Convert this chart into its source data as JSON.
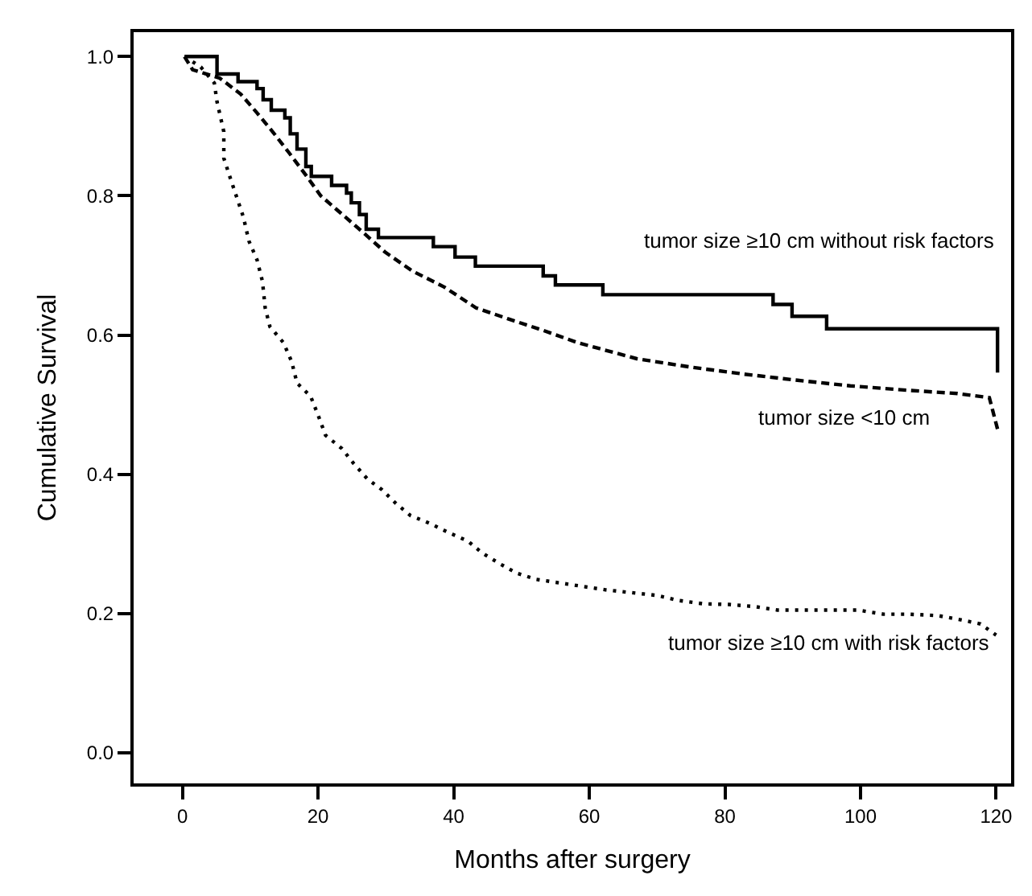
{
  "chart_data": {
    "type": "line",
    "xlabel": "Months after surgery",
    "ylabel": "Cumulative Survival",
    "xlim": [
      -7.2,
      122.2
    ],
    "xticks": [
      0,
      20,
      40,
      60,
      80,
      100,
      120
    ],
    "ylim": [
      -0.044,
      1.035
    ],
    "yticks": [
      {
        "value": 0,
        "label": "0.0"
      },
      {
        "value": 0.2,
        "label": "0.2"
      },
      {
        "value": 0.4,
        "label": "0.4"
      },
      {
        "value": 0.6,
        "label": "0.6"
      },
      {
        "value": 0.8,
        "label": "0.8"
      },
      {
        "value": 1,
        "label": "1.0"
      }
    ],
    "series": [
      {
        "name": "tumor size ≥10 cm without risk factors",
        "type": "step",
        "color": "#000000",
        "line_style": "solid",
        "x": [
          0.3,
          5.1,
          8.2,
          11,
          11.9,
          13.1,
          15.1,
          15.9,
          16.9,
          18.2,
          19,
          22,
          24.2,
          24.9,
          26.1,
          27.1,
          28.9,
          37,
          40.2,
          43.2,
          53.2,
          55,
          62,
          87.1,
          89.9,
          95,
          120.2,
          120.2
        ],
        "values": [
          1.0,
          0.975,
          0.964,
          0.954,
          0.938,
          0.923,
          0.912,
          0.889,
          0.867,
          0.842,
          0.828,
          0.815,
          0.804,
          0.79,
          0.773,
          0.752,
          0.74,
          0.727,
          0.712,
          0.699,
          0.685,
          0.672,
          0.658,
          0.644,
          0.627,
          0.609,
          0.609,
          0.546
        ]
      },
      {
        "name": "tumor size <10 cm",
        "color": "#000000",
        "line_style": "dashed",
        "x": [
          0.3,
          1.5,
          5.5,
          8.6,
          11,
          13.3,
          15.7,
          18.1,
          20.4,
          23.6,
          26.8,
          29.9,
          33.9,
          38.6,
          43.3,
          48.1,
          52.8,
          58.3,
          67,
          74.9,
          82.7,
          90.7,
          98.5,
          106.4,
          114.3,
          119,
          120.2
        ],
        "values": [
          1.0,
          0.981,
          0.969,
          0.946,
          0.919,
          0.892,
          0.862,
          0.831,
          0.8,
          0.773,
          0.746,
          0.719,
          0.692,
          0.669,
          0.639,
          0.623,
          0.608,
          0.589,
          0.566,
          0.554,
          0.544,
          0.535,
          0.527,
          0.521,
          0.516,
          0.51,
          0.465
        ]
      },
      {
        "name": "tumor size ≥10 cm with risk factors",
        "color": "#000000",
        "line_style": "dotted",
        "x": [
          0.3,
          2.7,
          4.7,
          5.1,
          6.1,
          6.1,
          7.0,
          9.0,
          9.8,
          11,
          11.8,
          12.2,
          12.9,
          14.9,
          16.1,
          16.9,
          18.9,
          20.0,
          21.1,
          23.5,
          25.2,
          27.3,
          29.4,
          31.5,
          33.6,
          36.6,
          39.1,
          42.1,
          44.2,
          46.7,
          49.3,
          52.2,
          55.6,
          59,
          62.4,
          66.2,
          70,
          73,
          76.8,
          80.6,
          84.4,
          87.7,
          92,
          99.6,
          103.4,
          107.2,
          111.4,
          114.8,
          117.7,
          120
        ],
        "values": [
          1.0,
          0.985,
          0.962,
          0.935,
          0.892,
          0.854,
          0.827,
          0.769,
          0.735,
          0.708,
          0.677,
          0.639,
          0.612,
          0.589,
          0.562,
          0.531,
          0.512,
          0.485,
          0.456,
          0.437,
          0.416,
          0.393,
          0.378,
          0.358,
          0.341,
          0.329,
          0.317,
          0.304,
          0.287,
          0.272,
          0.258,
          0.249,
          0.244,
          0.239,
          0.234,
          0.23,
          0.226,
          0.219,
          0.214,
          0.213,
          0.21,
          0.205,
          0.205,
          0.205,
          0.199,
          0.199,
          0.197,
          0.191,
          0.185,
          0.169
        ]
      }
    ]
  }
}
